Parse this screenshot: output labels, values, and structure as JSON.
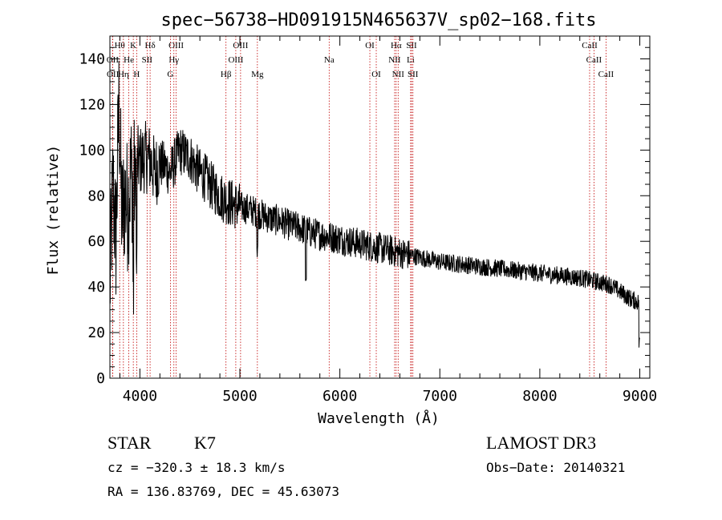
{
  "chart_data": {
    "type": "line",
    "title": "spec−56738−HD091915N465637V_sp02−168.fits",
    "xlabel": "Wavelength (Å)",
    "ylabel": "Flux (relative)",
    "xlim": [
      3700,
      9100
    ],
    "ylim": [
      0,
      150
    ],
    "xticks": [
      4000,
      5000,
      6000,
      7000,
      8000,
      9000
    ],
    "yticks": [
      0,
      20,
      40,
      60,
      80,
      100,
      120,
      140
    ],
    "grid": false,
    "series": [
      {
        "name": "flux",
        "x": [
          3700,
          3730,
          3760,
          3790,
          3820,
          3850,
          3880,
          3910,
          3940,
          3970,
          4000,
          4050,
          4100,
          4150,
          4200,
          4250,
          4300,
          4350,
          4400,
          4450,
          4500,
          4550,
          4600,
          4650,
          4700,
          4800,
          4900,
          5000,
          5100,
          5200,
          5300,
          5400,
          5500,
          5600,
          5700,
          5800,
          5900,
          6000,
          6100,
          6200,
          6300,
          6400,
          6500,
          6600,
          6700,
          6800,
          6900,
          7000,
          7200,
          7400,
          7600,
          7800,
          8000,
          8200,
          8400,
          8500,
          8600,
          8700,
          8800,
          8900,
          9000
        ],
        "y": [
          40,
          85,
          60,
          120,
          70,
          80,
          75,
          90,
          85,
          95,
          95,
          97,
          96,
          90,
          94,
          93,
          90,
          95,
          100,
          98,
          97,
          93,
          90,
          88,
          85,
          80,
          77,
          75,
          74,
          72,
          70,
          69,
          67,
          66,
          64,
          63,
          62,
          61,
          60,
          59,
          58,
          57,
          56,
          55,
          54,
          53,
          52,
          51,
          50,
          49,
          48,
          47,
          46,
          45,
          44,
          43,
          42,
          41,
          38,
          35,
          33
        ]
      }
    ],
    "lines": [
      {
        "name": "Hθ",
        "wl": 3798,
        "row": 1
      },
      {
        "name": "K",
        "wl": 3934,
        "row": 1
      },
      {
        "name": "Hδ",
        "wl": 4102,
        "row": 1
      },
      {
        "name": "OIII",
        "wl": 4363,
        "row": 1
      },
      {
        "name": "OIII",
        "wl": 5007,
        "row": 1
      },
      {
        "name": "OI",
        "wl": 6300,
        "row": 1
      },
      {
        "name": "Hα",
        "wl": 6563,
        "row": 1
      },
      {
        "name": "SII",
        "wl": 6717,
        "row": 1
      },
      {
        "name": "CaII",
        "wl": 8498,
        "row": 1
      },
      {
        "name": "OII",
        "wl": 3727,
        "row": 2
      },
      {
        "name": "He",
        "wl": 3889,
        "row": 2
      },
      {
        "name": "SII",
        "wl": 4072,
        "row": 2
      },
      {
        "name": "Hγ",
        "wl": 4340,
        "row": 2
      },
      {
        "name": "OIII",
        "wl": 4959,
        "row": 2
      },
      {
        "name": "Na",
        "wl": 5893,
        "row": 2
      },
      {
        "name": "NII",
        "wl": 6548,
        "row": 2
      },
      {
        "name": "Li",
        "wl": 6708,
        "row": 2
      },
      {
        "name": "CaII",
        "wl": 8542,
        "row": 2
      },
      {
        "name": "OII",
        "wl": 3729,
        "row": 3
      },
      {
        "name": "Hη",
        "wl": 3835,
        "row": 3
      },
      {
        "name": "H",
        "wl": 3968,
        "row": 3
      },
      {
        "name": "G",
        "wl": 4305,
        "row": 3
      },
      {
        "name": "Hβ",
        "wl": 4861,
        "row": 3
      },
      {
        "name": "Mg",
        "wl": 5175,
        "row": 3
      },
      {
        "name": "OI",
        "wl": 6364,
        "row": 3
      },
      {
        "name": "NII",
        "wl": 6583,
        "row": 3
      },
      {
        "name": "SII",
        "wl": 6731,
        "row": 3
      },
      {
        "name": "CaII",
        "wl": 8662,
        "row": 3
      }
    ]
  },
  "info": {
    "class": "STAR",
    "subclass": "K7",
    "survey": "LAMOST DR3",
    "cz": "cz = −320.3 ± 18.3 km/s",
    "obs_date": "Obs−Date: 20140321",
    "radec": "RA = 136.83769, DEC =  45.63073"
  }
}
